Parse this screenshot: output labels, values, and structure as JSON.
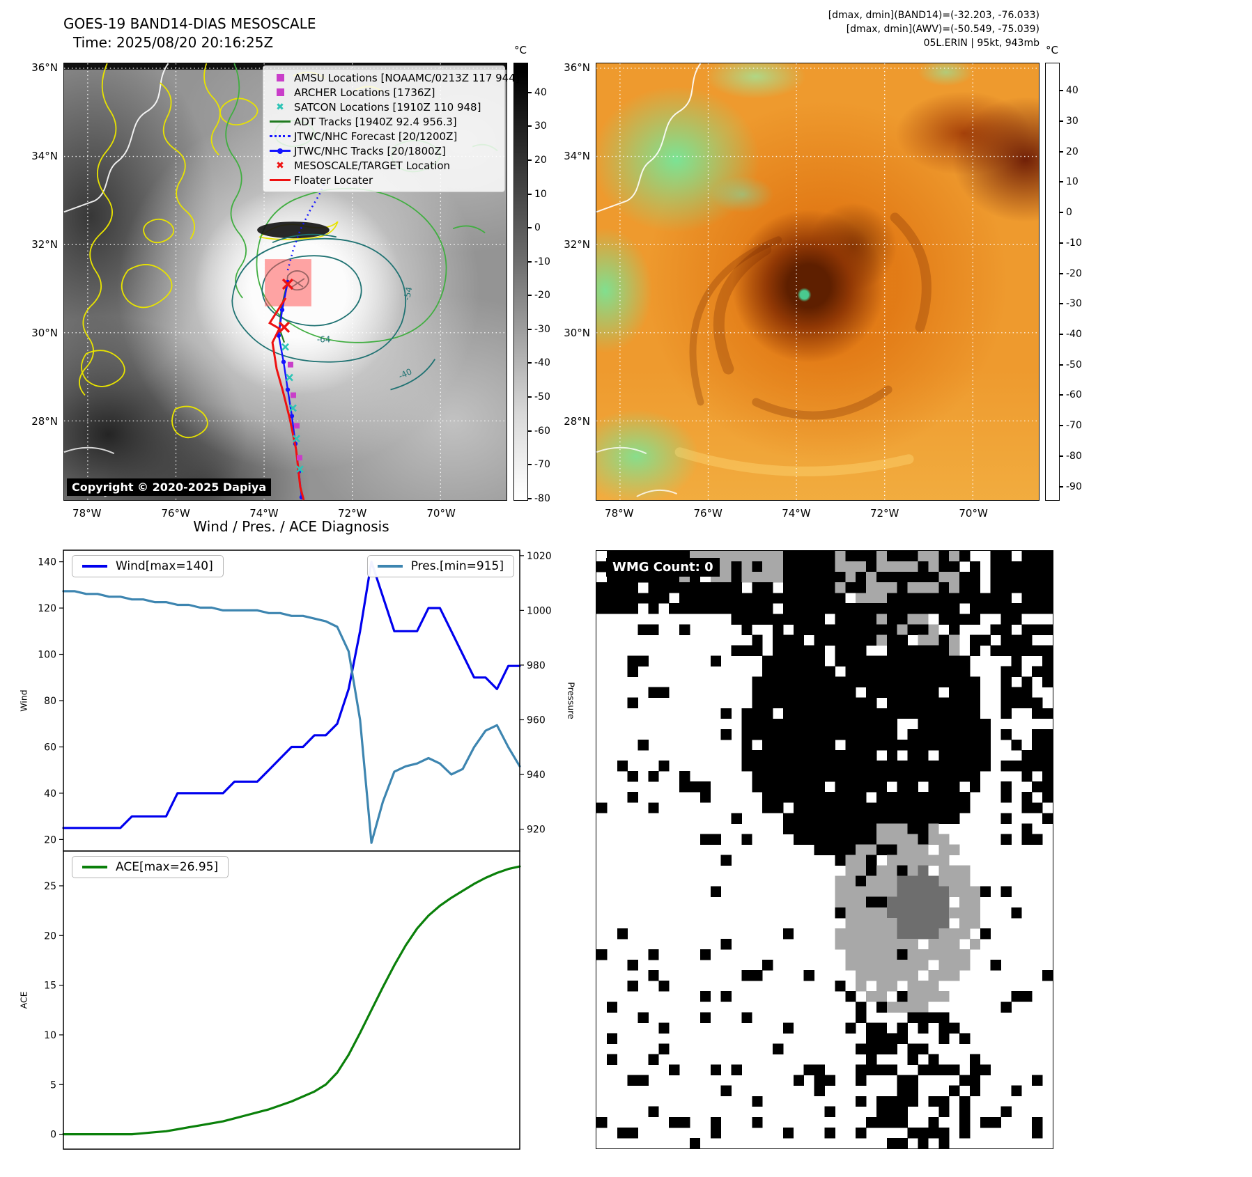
{
  "band14": {
    "title": "GOES-19 BAND14-DIAS MESOSCALE",
    "subtitle": "Time: 2025/08/20 20:16:25Z",
    "copyright": "Copyright © 2020-2025 Dapiya",
    "colorbar_unit": "°C",
    "colorbar_ticks": [
      "40",
      "30",
      "20",
      "10",
      "0",
      "-10",
      "-20",
      "-30",
      "-40",
      "-50",
      "-60",
      "-70",
      "-80"
    ],
    "lat_ticks": [
      "36°N",
      "34°N",
      "32°N",
      "30°N",
      "28°N"
    ],
    "lon_ticks": [
      "78°W",
      "76°W",
      "74°W",
      "72°W",
      "70°W"
    ],
    "contour_labels": [
      "-64",
      "-54",
      "-40"
    ],
    "legend": [
      {
        "label": "AMSU Locations [NOAAMC/0213Z 117 944]",
        "marker": "square",
        "color": "#c93ec9"
      },
      {
        "label": "ARCHER Locations [1736Z]",
        "marker": "square",
        "color": "#c93ec9"
      },
      {
        "label": "SATCON Locations [1910Z 110 948]",
        "marker": "x",
        "color": "#2ec4b6"
      },
      {
        "label": "ADT Tracks [1940Z 92.4 956.3]",
        "marker": "line",
        "color": "#1f7a1f"
      },
      {
        "label": "JTWC/NHC Forecast [20/1200Z]",
        "marker": "dotted",
        "color": "#1414ff"
      },
      {
        "label": "JTWC/NHC Tracks [20/1800Z]",
        "marker": "line-dot",
        "color": "#1414ff"
      },
      {
        "label": "MESOSCALE/TARGET Location",
        "marker": "x",
        "color": "#ee1111"
      },
      {
        "label": "Floater Locater",
        "marker": "line",
        "color": "#ee1111"
      }
    ]
  },
  "awv": {
    "header_lines": [
      "[dmax, dmin](BAND14)=(-32.203, -76.033)",
      "[dmax, dmin](AWV)=(-50.549, -75.039)",
      "05L.ERIN | 95kt, 943mb"
    ],
    "colorbar_unit": "°C",
    "colorbar_ticks": [
      "40",
      "30",
      "20",
      "10",
      "0",
      "-10",
      "-20",
      "-30",
      "-40",
      "-50",
      "-60",
      "-70",
      "-80",
      "-90"
    ],
    "lat_ticks": [
      "36°N",
      "34°N",
      "32°N",
      "30°N",
      "28°N"
    ],
    "lon_ticks": [
      "78°W",
      "76°W",
      "74°W",
      "72°W",
      "70°W"
    ]
  },
  "diagnosis": {
    "title": "Wind / Pres. / ACE Diagnosis"
  },
  "wmg": {
    "count_label": "WMG Count: 0"
  },
  "chart_data": [
    {
      "type": "line",
      "title": "Wind / Pres. / ACE Diagnosis (upper panel)",
      "x_note": "x axis unlabeled (time steps 0-40)",
      "left_axis": {
        "label": "Wind",
        "ticks": [
          20,
          40,
          60,
          80,
          100,
          120,
          140
        ],
        "range": [
          15,
          145
        ]
      },
      "right_axis": {
        "label": "Pressure",
        "ticks": [
          920,
          940,
          960,
          980,
          1000,
          1020
        ],
        "range": [
          912,
          1022
        ]
      },
      "series": [
        {
          "name": "Wind[max=140]",
          "axis": "left",
          "color": "#0000ee",
          "values": [
            25,
            25,
            25,
            25,
            25,
            25,
            30,
            30,
            30,
            30,
            40,
            40,
            40,
            40,
            40,
            45,
            45,
            45,
            50,
            55,
            60,
            60,
            65,
            65,
            70,
            85,
            110,
            140,
            125,
            110,
            110,
            110,
            120,
            120,
            110,
            100,
            90,
            90,
            85,
            95,
            95
          ]
        },
        {
          "name": "Pres.[min=915]",
          "axis": "right",
          "color": "#3d85b0",
          "values": [
            1007,
            1007,
            1006,
            1006,
            1005,
            1005,
            1004,
            1004,
            1003,
            1003,
            1002,
            1002,
            1001,
            1001,
            1000,
            1000,
            1000,
            1000,
            999,
            999,
            998,
            998,
            997,
            996,
            994,
            985,
            960,
            915,
            930,
            941,
            943,
            944,
            946,
            944,
            940,
            942,
            950,
            956,
            958,
            950,
            943
          ]
        }
      ]
    },
    {
      "type": "line",
      "title": "Wind / Pres. / ACE Diagnosis (lower panel)",
      "x_note": "x axis unlabeled (time steps 0-40)",
      "left_axis": {
        "label": "ACE",
        "ticks": [
          0,
          5,
          10,
          15,
          20,
          25
        ],
        "range": [
          -1.5,
          28.5
        ]
      },
      "series": [
        {
          "name": "ACE[max=26.95]",
          "axis": "left",
          "color": "#0a800a",
          "values": [
            0,
            0,
            0,
            0,
            0,
            0,
            0,
            0.1,
            0.2,
            0.3,
            0.5,
            0.7,
            0.9,
            1.1,
            1.3,
            1.6,
            1.9,
            2.2,
            2.5,
            2.9,
            3.3,
            3.8,
            4.3,
            5.0,
            6.2,
            8.0,
            10.2,
            12.5,
            14.8,
            17.0,
            19.0,
            20.7,
            22.0,
            23.0,
            23.8,
            24.5,
            25.2,
            25.8,
            26.3,
            26.7,
            26.95
          ]
        }
      ]
    }
  ]
}
